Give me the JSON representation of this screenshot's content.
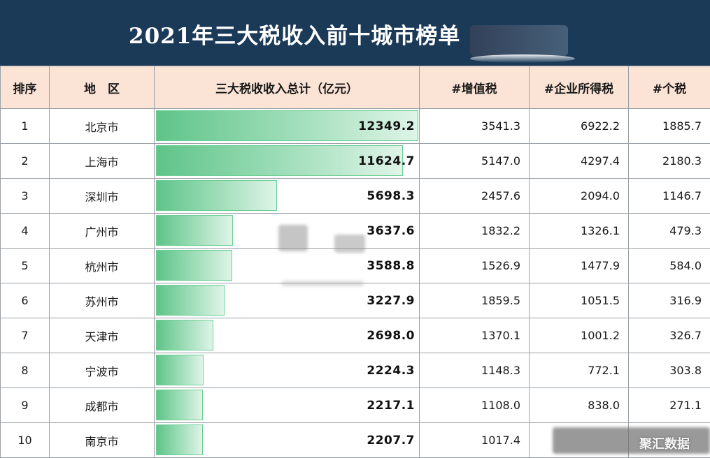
{
  "title": "2021年三大税收入前十城市榜单",
  "watermark": "聚汇数据",
  "colors": {
    "header_bg": "#1b3a58",
    "column_header_bg": "#fbe4d6",
    "bar": "#5fc489"
  },
  "table": {
    "headers": [
      "排序",
      "地　区",
      "三大税收收入总计（亿元）",
      "#增值税",
      "#企业所得税",
      "#个税"
    ],
    "rows": [
      {
        "rank": "1",
        "region": "北京市",
        "total": "12349.2",
        "vat": "3541.3",
        "cit": "6922.2",
        "pit": "1885.7"
      },
      {
        "rank": "2",
        "region": "上海市",
        "total": "11624.7",
        "vat": "5147.0",
        "cit": "4297.4",
        "pit": "2180.3"
      },
      {
        "rank": "3",
        "region": "深圳市",
        "total": "5698.3",
        "vat": "2457.6",
        "cit": "2094.0",
        "pit": "1146.7"
      },
      {
        "rank": "4",
        "region": "广州市",
        "total": "3637.6",
        "vat": "1832.2",
        "cit": "1326.1",
        "pit": "479.3"
      },
      {
        "rank": "5",
        "region": "杭州市",
        "total": "3588.8",
        "vat": "1526.9",
        "cit": "1477.9",
        "pit": "584.0"
      },
      {
        "rank": "6",
        "region": "苏州市",
        "total": "3227.9",
        "vat": "1859.5",
        "cit": "1051.5",
        "pit": "316.9"
      },
      {
        "rank": "7",
        "region": "天津市",
        "total": "2698.0",
        "vat": "1370.1",
        "cit": "1001.2",
        "pit": "326.7"
      },
      {
        "rank": "8",
        "region": "宁波市",
        "total": "2224.3",
        "vat": "1148.3",
        "cit": "772.1",
        "pit": "303.8"
      },
      {
        "rank": "9",
        "region": "成都市",
        "total": "2217.1",
        "vat": "1108.0",
        "cit": "838.0",
        "pit": "271.1"
      },
      {
        "rank": "10",
        "region": "南京市",
        "total": "2207.7",
        "vat": "1017.4",
        "cit": "",
        "pit": ""
      }
    ]
  },
  "chart_data": {
    "type": "table",
    "title": "2021年三大税收入前十城市榜单",
    "categories": [
      "北京市",
      "上海市",
      "深圳市",
      "广州市",
      "杭州市",
      "苏州市",
      "天津市",
      "宁波市",
      "成都市",
      "南京市"
    ],
    "series": [
      {
        "name": "三大税收收入总计（亿元）",
        "values": [
          12349.2,
          11624.7,
          5698.3,
          3637.6,
          3588.8,
          3227.9,
          2698.0,
          2224.3,
          2217.1,
          2207.7
        ]
      },
      {
        "name": "#增值税",
        "values": [
          3541.3,
          5147.0,
          2457.6,
          1832.2,
          1526.9,
          1859.5,
          1370.1,
          1148.3,
          1108.0,
          1017.4
        ]
      },
      {
        "name": "#企业所得税",
        "values": [
          6922.2,
          4297.4,
          2094.0,
          1326.1,
          1477.9,
          1051.5,
          1001.2,
          772.1,
          838.0,
          null
        ]
      },
      {
        "name": "#个税",
        "values": [
          1885.7,
          2180.3,
          1146.7,
          479.3,
          584.0,
          316.9,
          326.7,
          303.8,
          271.1,
          null
        ]
      }
    ],
    "bar_column": "三大税收收入总计（亿元）",
    "bar_max": 12349.2
  }
}
